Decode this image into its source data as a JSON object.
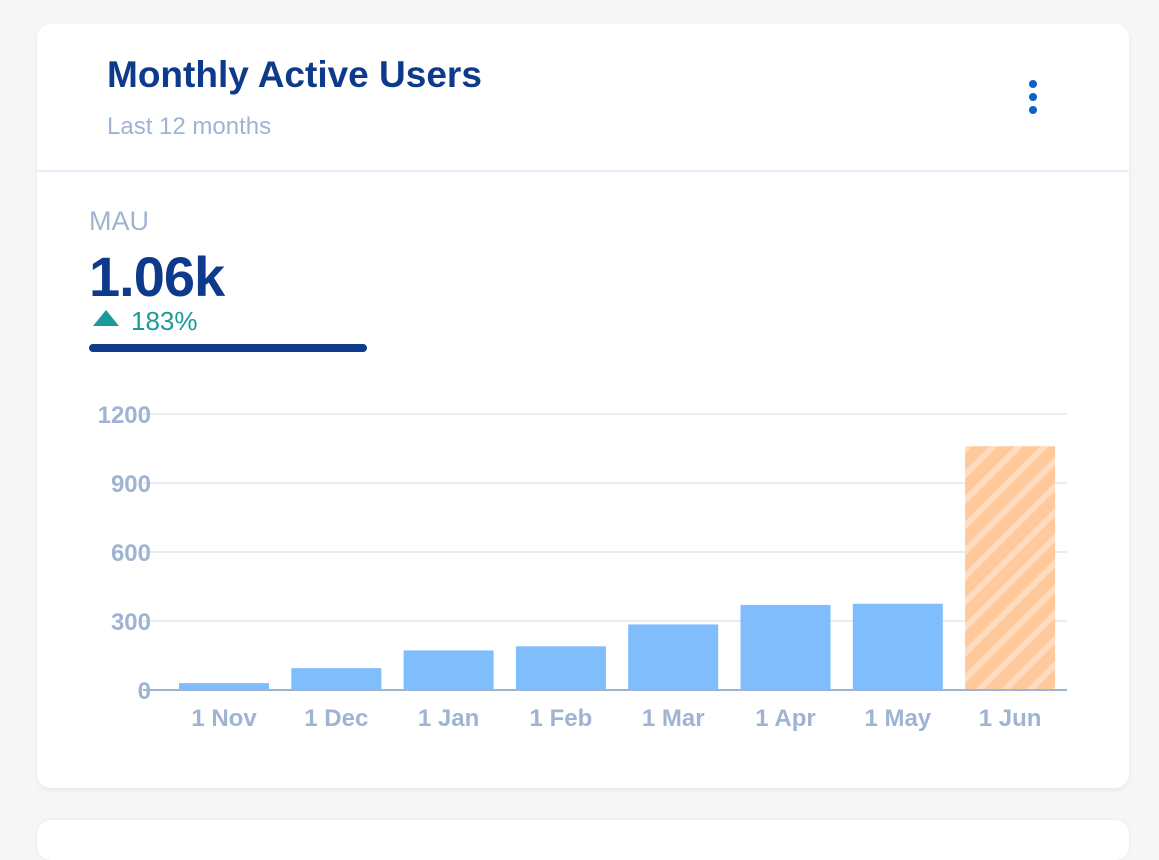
{
  "card": {
    "title": "Monthly Active Users",
    "subtitle": "Last 12 months",
    "menu_icon": "more-vertical-icon"
  },
  "metric": {
    "label": "MAU",
    "value": "1.06k",
    "change": "183%",
    "change_direction": "up",
    "change_icon": "triangle-up-icon"
  },
  "colors": {
    "title": "#0d3a8a",
    "accent": "#0b62c9",
    "bar": "#80bdfd",
    "highlight_bar": "#ffc99c",
    "positive": "#1a9a98",
    "muted": "#9fb4d3"
  },
  "chart_data": {
    "type": "bar",
    "categories": [
      "1 Nov",
      "1 Dec",
      "1 Jan",
      "1 Feb",
      "1 Mar",
      "1 Apr",
      "1 May",
      "1 Jun"
    ],
    "values": [
      30,
      95,
      172,
      190,
      285,
      370,
      375,
      1060
    ],
    "highlight_index": 7,
    "highlight_style": "striped",
    "yticks": [
      0,
      300,
      600,
      900,
      1200
    ],
    "ylim": [
      0,
      1200
    ],
    "grid": true,
    "title": "",
    "xlabel": "",
    "ylabel": ""
  }
}
